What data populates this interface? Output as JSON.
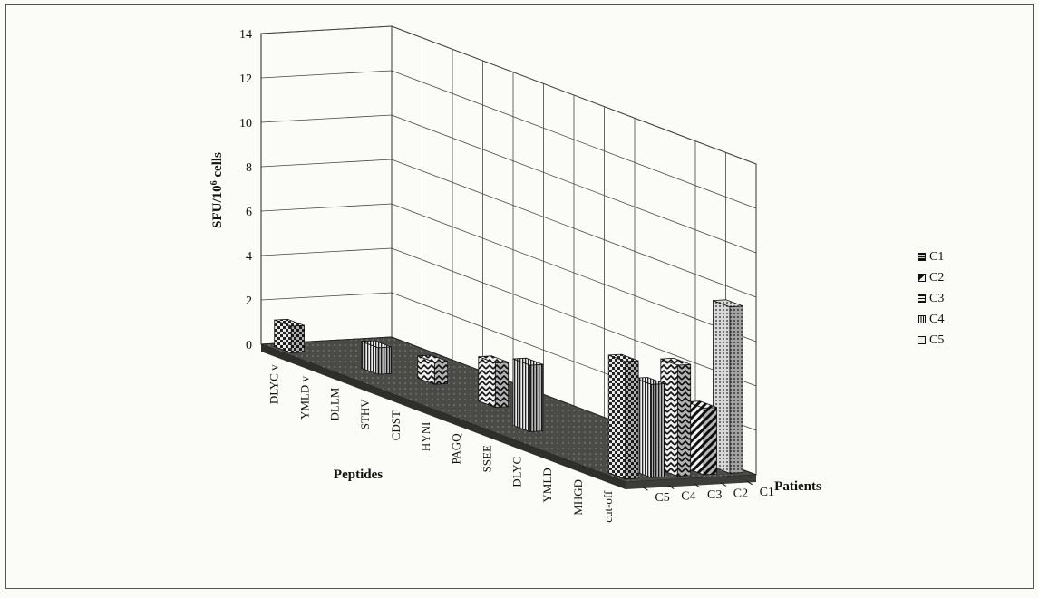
{
  "chart_data": {
    "type": "bar",
    "subtype": "3d-bar",
    "title": "",
    "ylabel": "SFU/10",
    "ylabel_superscript": "6",
    "ylabel_suffix": " cells",
    "xlabel": "Peptides",
    "zlabel": "Patients",
    "ylim": [
      0,
      14
    ],
    "yticks": [
      0,
      2,
      4,
      6,
      8,
      10,
      12,
      14
    ],
    "categories": [
      "DLYC v",
      "YMLD v",
      "DLLM",
      "STHV",
      "CDST",
      "HYNI",
      "PAGQ",
      "SSEE",
      "DLYC",
      "YMLD",
      "MHGD",
      "cut-off"
    ],
    "patients": [
      "C5",
      "C4",
      "C3",
      "C2",
      "C1"
    ],
    "series": [
      {
        "name": "C1",
        "values": [
          0,
          0,
          0,
          0,
          0,
          0,
          0,
          0,
          0,
          0,
          0,
          7.5
        ]
      },
      {
        "name": "C2",
        "values": [
          0,
          0,
          0,
          0,
          0,
          0,
          0,
          0,
          0,
          0,
          0,
          3.0
        ]
      },
      {
        "name": "C3",
        "values": [
          0,
          0,
          0,
          1.0,
          0,
          2.0,
          0,
          0,
          0,
          0,
          0,
          5.0
        ]
      },
      {
        "name": "C4",
        "values": [
          0,
          0,
          1.2,
          0,
          0,
          0,
          0,
          3.0,
          0,
          0,
          0,
          4.2
        ]
      },
      {
        "name": "C5",
        "values": [
          1.2,
          0,
          0,
          0,
          0,
          0,
          0,
          0,
          0,
          0,
          0,
          5.3
        ]
      }
    ],
    "legend": [
      {
        "label": "C1",
        "pattern": "dots"
      },
      {
        "label": "C2",
        "pattern": "diag"
      },
      {
        "label": "C3",
        "pattern": "zigzag"
      },
      {
        "label": "C4",
        "pattern": "vlines"
      },
      {
        "label": "C5",
        "pattern": "checker"
      }
    ],
    "legend_position": "right",
    "grid": true
  }
}
